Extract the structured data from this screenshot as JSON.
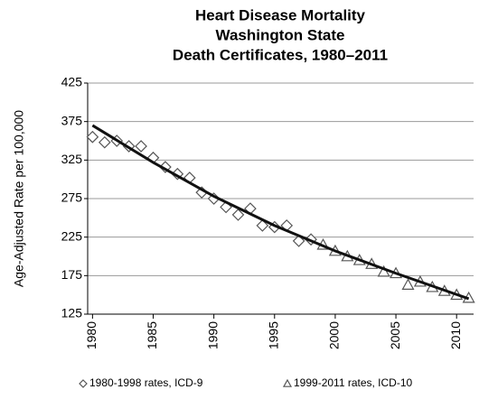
{
  "chart_data": {
    "type": "scatter",
    "title": [
      "Heart Disease Mortality",
      "Washington State",
      "Death Certificates, 1980–2011"
    ],
    "ylabel": "Age-Adjusted Rate per 100,000",
    "xlim": [
      1979.6,
      2011.4
    ],
    "ylim": [
      125,
      425
    ],
    "xticks": [
      1980,
      1985,
      1990,
      1995,
      2000,
      2005,
      2010
    ],
    "yticks": [
      125,
      175,
      225,
      275,
      325,
      375,
      425
    ],
    "grid": true,
    "series": [
      {
        "name": "1980-1998 rates, ICD-9",
        "marker": "diamond",
        "color": "#555555",
        "x": [
          1980,
          1981,
          1982,
          1983,
          1984,
          1985,
          1986,
          1987,
          1988,
          1989,
          1990,
          1991,
          1992,
          1993,
          1994,
          1995,
          1996,
          1997,
          1998
        ],
        "values": [
          355,
          348,
          350,
          343,
          343,
          328,
          316,
          307,
          302,
          283,
          275,
          264,
          254,
          262,
          240,
          238,
          240,
          220,
          222
        ]
      },
      {
        "name": "1999-2011 rates, ICD-10",
        "marker": "triangle",
        "color": "#555555",
        "x": [
          1999,
          2000,
          2001,
          2002,
          2003,
          2004,
          2005,
          2006,
          2007,
          2008,
          2009,
          2010,
          2011
        ],
        "values": [
          215,
          207,
          200,
          195,
          190,
          180,
          178,
          163,
          167,
          160,
          155,
          150,
          146
        ]
      }
    ],
    "trend": {
      "color": "#111111",
      "x": [
        1980,
        1985,
        1990,
        1995,
        2000,
        2005,
        2011
      ],
      "values": [
        370,
        322,
        278,
        240,
        207,
        178,
        145
      ]
    }
  }
}
